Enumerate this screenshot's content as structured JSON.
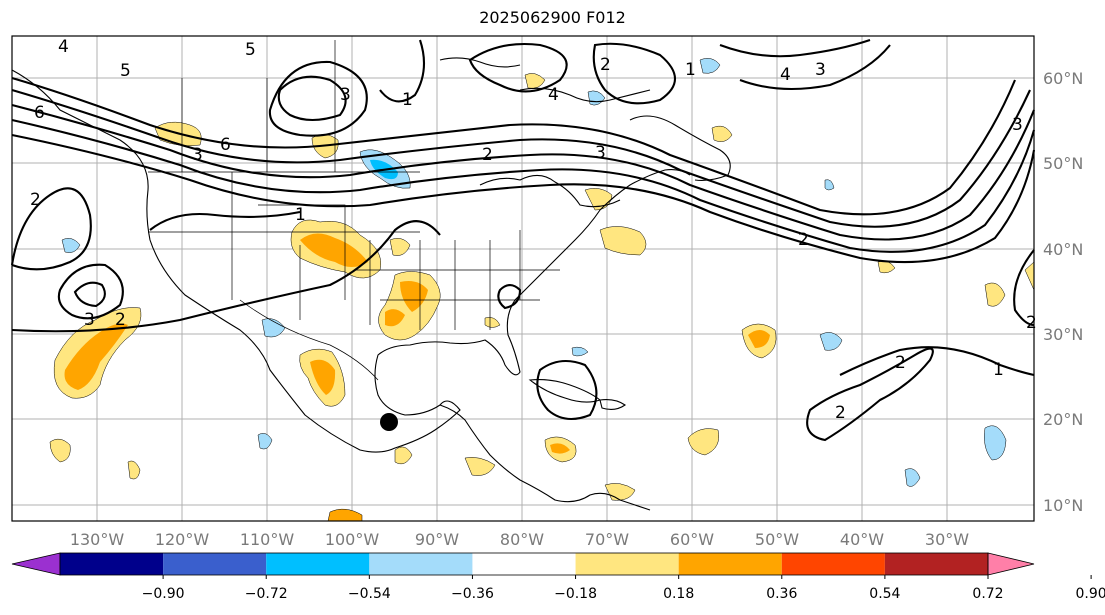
{
  "title": "2025062900 F012",
  "map": {
    "lon_labels": [
      "130°W",
      "120°W",
      "110°W",
      "100°W",
      "90°W",
      "80°W",
      "70°W",
      "60°W",
      "50°W",
      "40°W",
      "30°W"
    ],
    "lat_labels": [
      "60°N",
      "50°N",
      "40°N",
      "30°N",
      "20°N",
      "10°N"
    ],
    "grid": true,
    "contour_labels": [
      "4",
      "5",
      "6",
      "2",
      "3",
      "1",
      "2",
      "3",
      "2",
      "4",
      "6",
      "3",
      "5",
      "2",
      "3",
      "4",
      "3",
      "2",
      "1",
      "2",
      "1",
      "2",
      "1",
      "3",
      "2"
    ],
    "marker": "black-dot"
  },
  "colorbar": {
    "colors": [
      "#9b30d0",
      "#00008b",
      "#3a5fcd",
      "#00bfff",
      "#a4dcfa",
      "#ffffff",
      "#ffe680",
      "#ffa500",
      "#ff4500",
      "#b22222",
      "#ff7fa8"
    ],
    "labels": [
      "−0.90",
      "−0.72",
      "−0.54",
      "−0.36",
      "−0.18",
      "0.18",
      "0.36",
      "0.54",
      "0.72",
      "0.90"
    ]
  }
}
